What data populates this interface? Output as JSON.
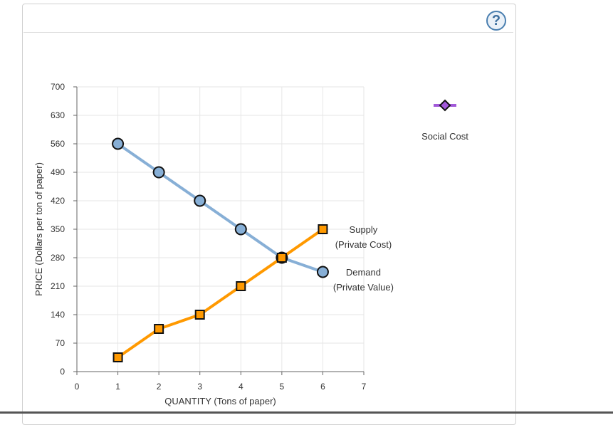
{
  "help_label": "?",
  "chart_data": {
    "type": "line",
    "xlabel": "QUANTITY (Tons of paper)",
    "ylabel": "PRICE (Dollars per ton of paper)",
    "xlim": [
      0,
      7
    ],
    "ylim": [
      0,
      700
    ],
    "xticks": [
      "0",
      "1",
      "2",
      "3",
      "4",
      "5",
      "6",
      "7"
    ],
    "yticks": [
      "0",
      "70",
      "140",
      "210",
      "280",
      "350",
      "420",
      "490",
      "560",
      "630",
      "700"
    ],
    "grid": true,
    "series": [
      {
        "name": "Demand (Private Value)",
        "label_lines": [
          "Demand",
          "(Private Value)"
        ],
        "color": "#87afd6",
        "marker": "circle",
        "x": [
          1,
          2,
          3,
          4,
          5,
          6
        ],
        "y": [
          560,
          490,
          420,
          350,
          280,
          245
        ]
      },
      {
        "name": "Supply (Private Cost)",
        "label_lines": [
          "Supply",
          "(Private Cost)"
        ],
        "color": "#ff9900",
        "marker": "square",
        "x": [
          1,
          2,
          3,
          4,
          5,
          6
        ],
        "y": [
          35,
          105,
          140,
          210,
          280,
          350
        ]
      }
    ],
    "legend": {
      "position": "right",
      "entries": [
        {
          "name": "Social Cost",
          "color": "#a259d9",
          "marker": "diamond"
        }
      ]
    }
  }
}
